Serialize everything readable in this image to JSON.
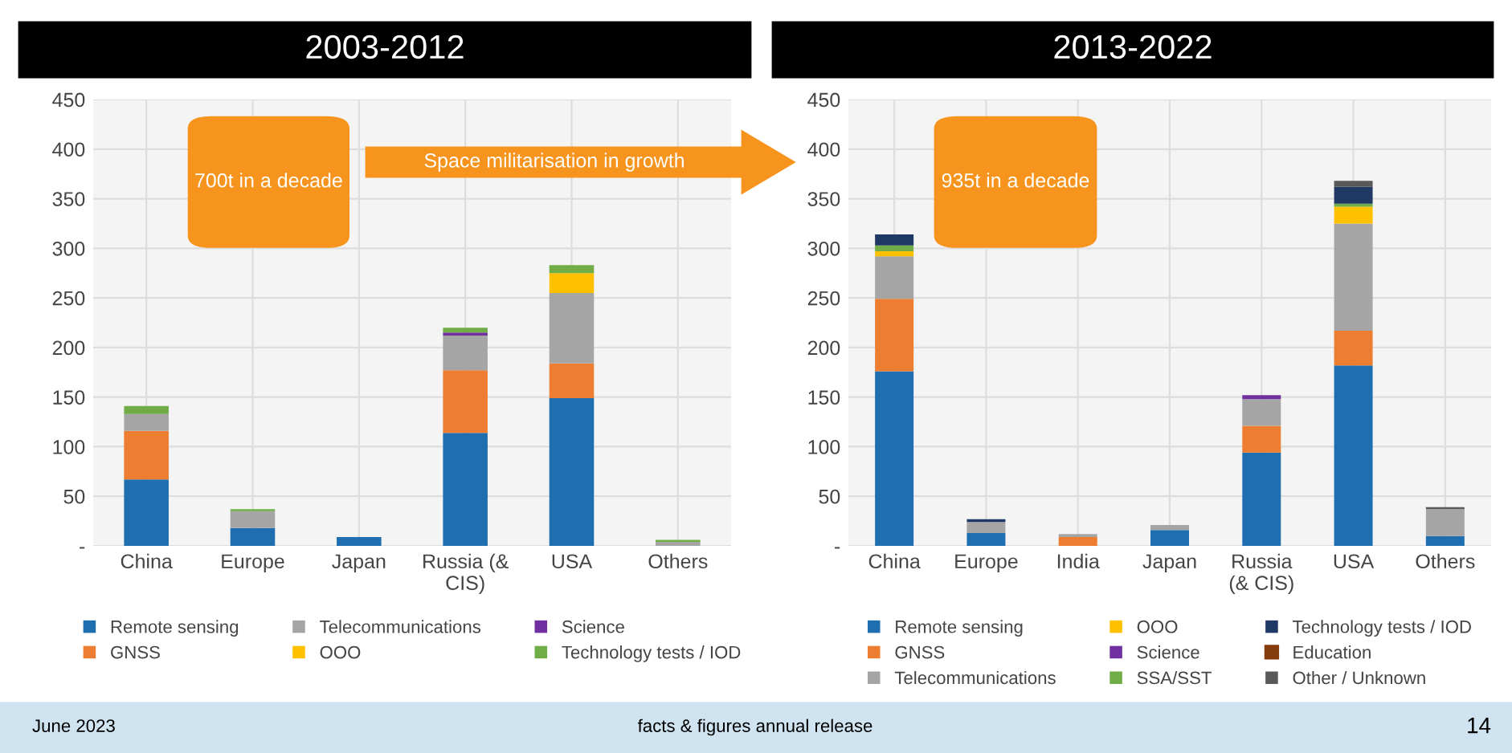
{
  "chart_data": [
    {
      "type": "bar",
      "title": "2003-2012",
      "stacked": true,
      "categories": [
        "China",
        "Europe",
        "Japan",
        "Russia (& CIS)",
        "USA",
        "Others"
      ],
      "series": [
        {
          "name": "Remote sensing",
          "color": "#1f6fb0",
          "values": [
            67,
            18,
            9,
            114,
            149,
            0
          ]
        },
        {
          "name": "GNSS",
          "color": "#ed7d31",
          "values": [
            49,
            0,
            0,
            63,
            35,
            0
          ]
        },
        {
          "name": "Telecommunications",
          "color": "#a5a5a5",
          "values": [
            17,
            17,
            0,
            35,
            71,
            4
          ]
        },
        {
          "name": "OOO",
          "color": "#ffc000",
          "values": [
            0,
            0,
            0,
            0,
            20,
            0
          ]
        },
        {
          "name": "Science",
          "color": "#7030a0",
          "values": [
            0,
            0,
            0,
            3,
            0,
            0
          ]
        },
        {
          "name": "Technology tests / IOD",
          "color": "#70ad47",
          "values": [
            8,
            2,
            0,
            5,
            8,
            2
          ]
        }
      ],
      "ylim": [
        0,
        450
      ],
      "yticks": [
        {
          "value": 0,
          "label": "-"
        },
        50,
        100,
        150,
        200,
        250,
        300,
        350,
        400,
        450
      ],
      "grid": true,
      "legend": "bottom",
      "annotations": [
        "700t in a decade",
        "Space militarisation in growth",
        "June 2023",
        "facts & figures annual release",
        "14"
      ]
    },
    {
      "type": "bar",
      "title": "2013-2022",
      "stacked": true,
      "categories": [
        "China",
        "Europe",
        "India",
        "Japan",
        "Russia (& CIS)",
        "USA",
        "Others"
      ],
      "series": [
        {
          "name": "Remote sensing",
          "color": "#1f6fb0",
          "values": [
            176,
            13,
            0,
            16,
            94,
            182,
            10
          ]
        },
        {
          "name": "GNSS",
          "color": "#ed7d31",
          "values": [
            73,
            0,
            9,
            0,
            27,
            35,
            0
          ]
        },
        {
          "name": "Telecommunications",
          "color": "#a5a5a5",
          "values": [
            43,
            11,
            3,
            5,
            27,
            108,
            27
          ]
        },
        {
          "name": "OOO",
          "color": "#ffc000",
          "values": [
            5,
            0,
            0,
            0,
            0,
            17,
            0
          ]
        },
        {
          "name": "Science",
          "color": "#7030a0",
          "values": [
            0,
            0,
            0,
            0,
            4,
            0,
            0
          ]
        },
        {
          "name": "SSA/SST",
          "color": "#70ad47",
          "values": [
            6,
            0,
            0,
            0,
            0,
            3,
            0
          ]
        },
        {
          "name": "Technology tests / IOD",
          "color": "#1f3864",
          "values": [
            11,
            3,
            0,
            0,
            0,
            17,
            0
          ]
        },
        {
          "name": "Education",
          "color": "#843c0c",
          "values": [
            0,
            0,
            0,
            0,
            0,
            0,
            0
          ]
        },
        {
          "name": "Other / Unknown",
          "color": "#595959",
          "values": [
            0,
            0,
            0,
            0,
            0,
            6,
            2
          ]
        }
      ],
      "ylim": [
        0,
        450
      ],
      "yticks": [
        {
          "value": 0,
          "label": "-"
        },
        50,
        100,
        150,
        200,
        250,
        300,
        350,
        400,
        450
      ],
      "grid": true,
      "legend": "bottom",
      "annotations": [
        "935t in a decade"
      ]
    }
  ]
}
